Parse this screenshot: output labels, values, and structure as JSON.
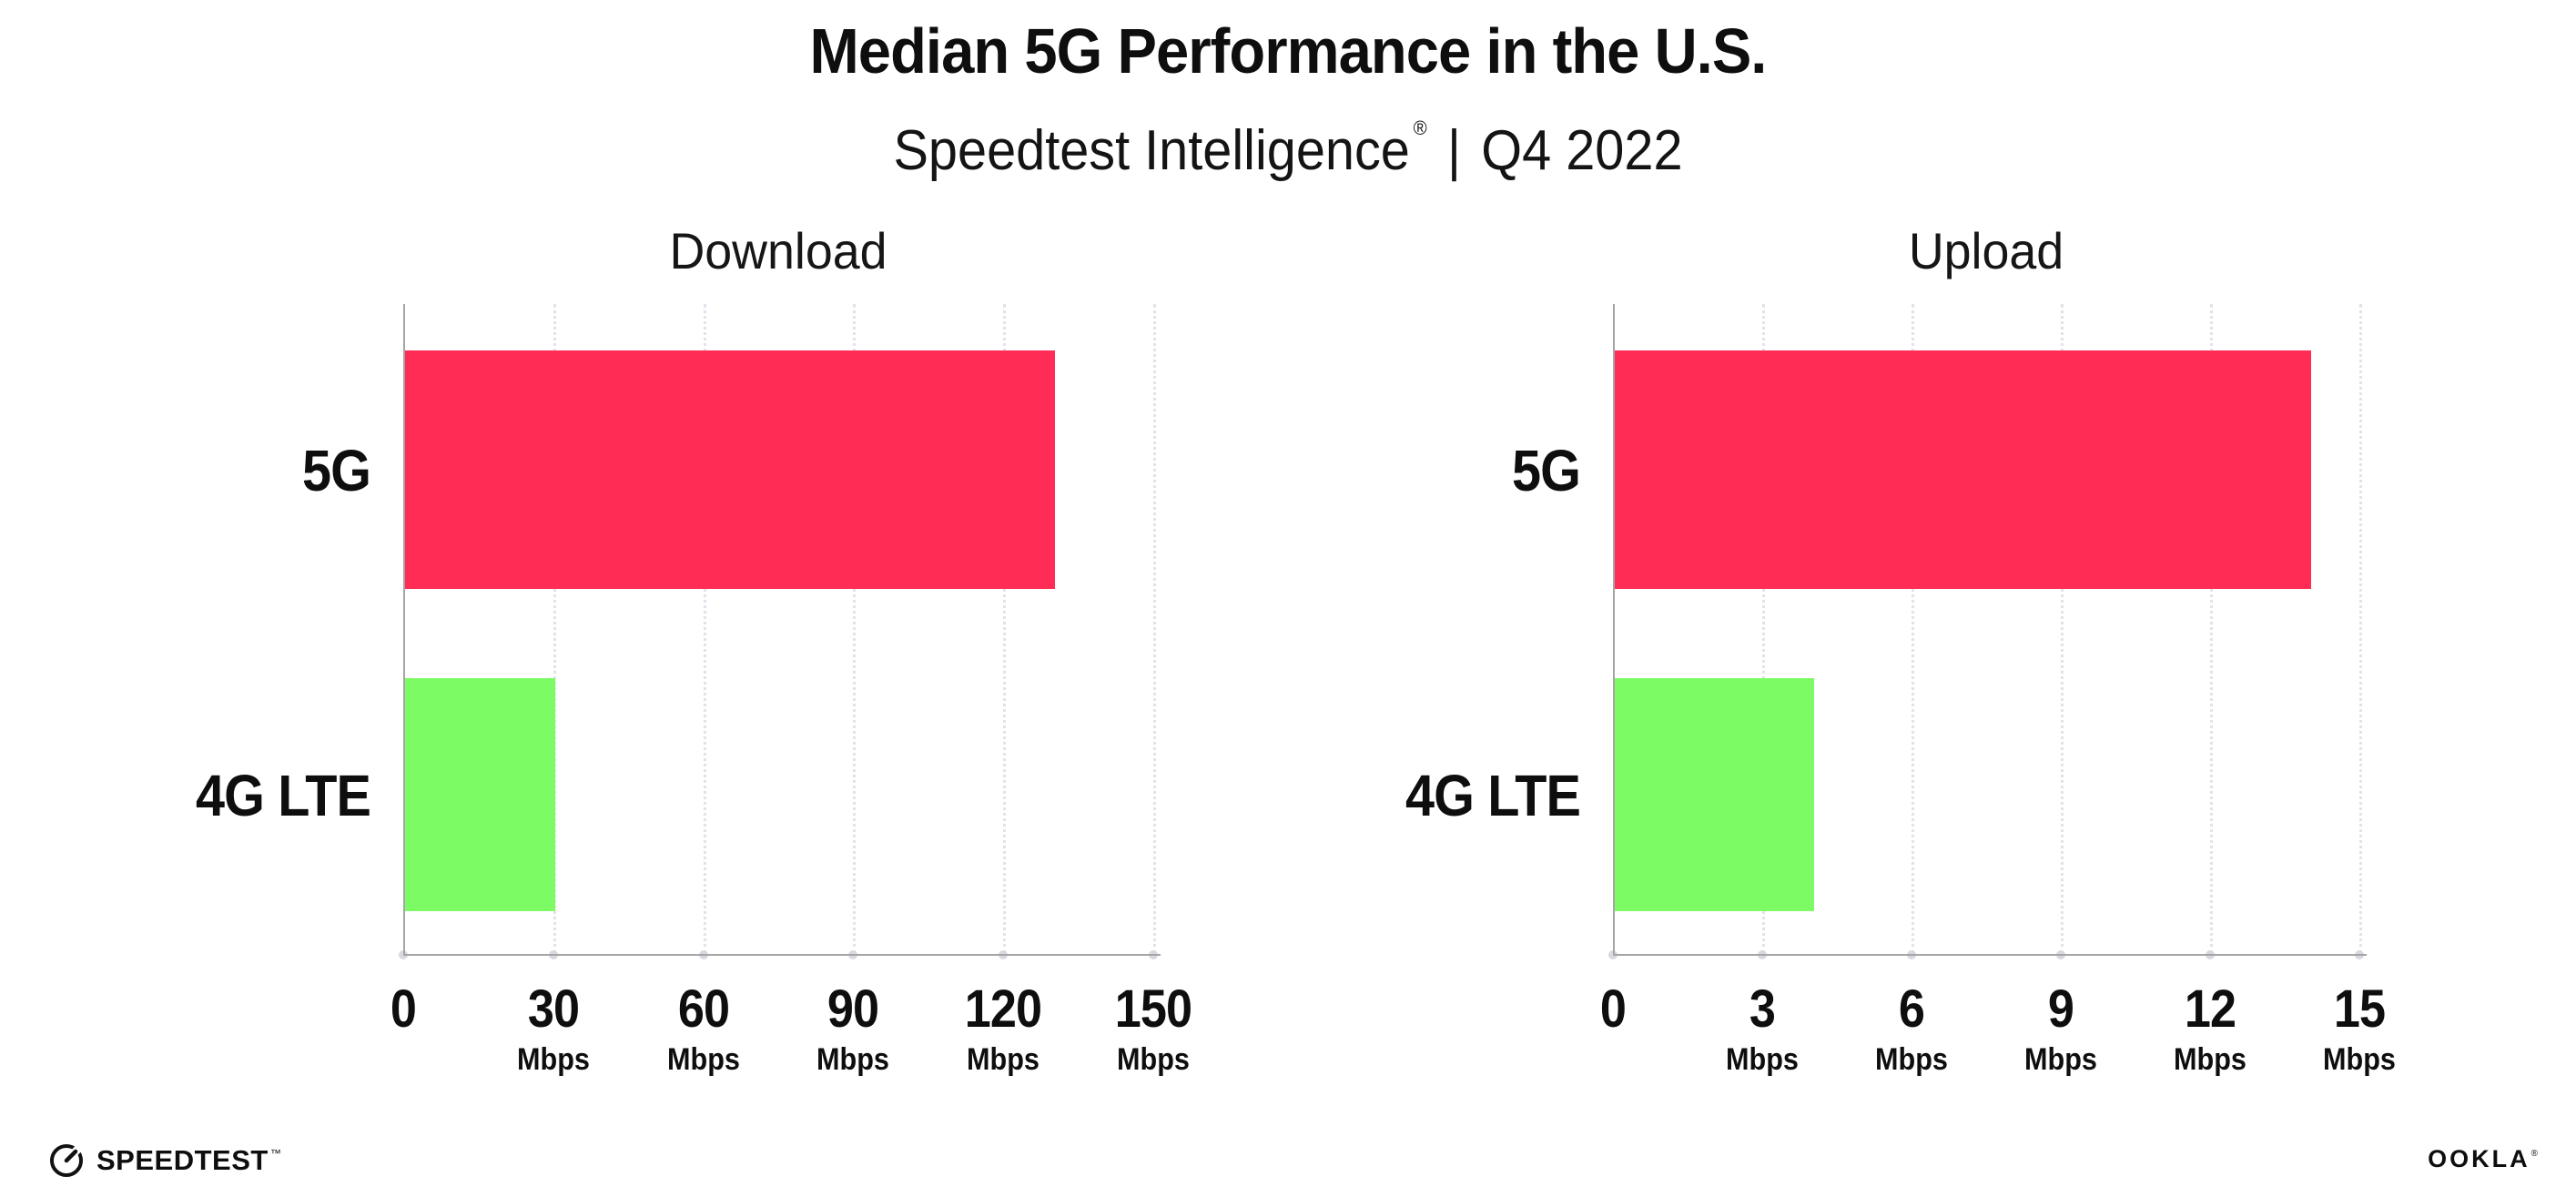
{
  "header": {
    "title": "Median 5G Performance in the U.S.",
    "subtitle_brand": "Speedtest Intelligence",
    "subtitle_registered": "®",
    "subtitle_separator": "|",
    "subtitle_period": "Q4 2022"
  },
  "chart_data": [
    {
      "type": "bar",
      "orientation": "horizontal",
      "title": "Download",
      "categories": [
        "5G",
        "4G LTE"
      ],
      "values": [
        130,
        30
      ],
      "unit": "Mbps",
      "xlim": [
        0,
        150
      ],
      "xticks": [
        0,
        30,
        60,
        90,
        120,
        150
      ],
      "bar_colors": [
        "#FF2D55",
        "#7DFB64"
      ],
      "grid": "dotted-vertical",
      "legend": "none"
    },
    {
      "type": "bar",
      "orientation": "horizontal",
      "title": "Upload",
      "categories": [
        "5G",
        "4G LTE"
      ],
      "values": [
        14,
        4
      ],
      "unit": "Mbps",
      "xlim": [
        0,
        15
      ],
      "xticks": [
        0,
        3,
        6,
        9,
        12,
        15
      ],
      "bar_colors": [
        "#FF2D55",
        "#7DFB64"
      ],
      "grid": "dotted-vertical",
      "legend": "none"
    }
  ],
  "footer": {
    "speedtest": "SPEEDTEST",
    "speedtest_mark": "™",
    "ookla": "OOKLA",
    "ookla_mark": "®"
  },
  "colors": {
    "bar_5g": "#FF2D55",
    "bar_4g": "#7DFB64",
    "axis": "#A5A5A5",
    "gridline": "#E2E2EA",
    "tick_dot": "#D8D8E0",
    "text": "#0E0E0E"
  }
}
